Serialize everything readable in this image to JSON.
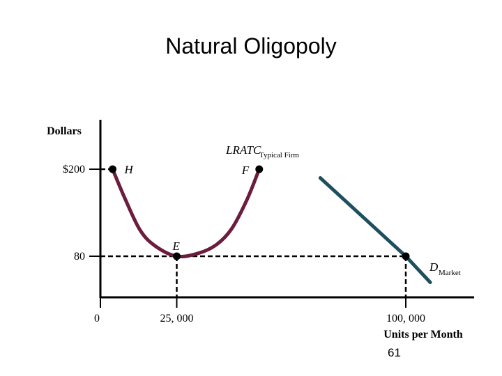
{
  "slide": {
    "title": "Natural Oligopoly",
    "page_number": "61"
  },
  "chart_data": {
    "type": "line",
    "ylabel": "Dollars",
    "xlabel": "Units per Month",
    "x_ticks": [
      {
        "value": 0,
        "label": "0"
      },
      {
        "value": 25000,
        "label": "25, 000"
      },
      {
        "value": 100000,
        "label": "100, 000"
      }
    ],
    "y_ticks": [
      {
        "value": 200,
        "label": "$200"
      },
      {
        "value": 80,
        "label": "80"
      }
    ],
    "series": [
      {
        "name": "LRATC",
        "subscript": "Typical Firm",
        "color": "#6b1d3e",
        "points": [
          {
            "x": 4000,
            "y": 200
          },
          {
            "x": 8000,
            "y": 160
          },
          {
            "x": 13000,
            "y": 116
          },
          {
            "x": 18000,
            "y": 94
          },
          {
            "x": 25000,
            "y": 80
          },
          {
            "x": 32000,
            "y": 84
          },
          {
            "x": 38000,
            "y": 96
          },
          {
            "x": 43000,
            "y": 118
          },
          {
            "x": 48000,
            "y": 158
          },
          {
            "x": 52000,
            "y": 200
          }
        ]
      },
      {
        "name": "D",
        "subscript": "Market",
        "color": "#1d4f5e",
        "points": [
          {
            "x": 72000,
            "y": 188
          },
          {
            "x": 100000,
            "y": 80
          },
          {
            "x": 108000,
            "y": 44
          }
        ]
      }
    ],
    "marked_points": [
      {
        "label": "H",
        "x": 4000,
        "y": 200
      },
      {
        "label": "F",
        "x": 52000,
        "y": 200
      },
      {
        "label": "E",
        "x": 25000,
        "y": 80
      },
      {
        "label": "",
        "x": 100000,
        "y": 80
      }
    ],
    "guide_lines": [
      {
        "from": "y-axis",
        "to": "H"
      },
      {
        "from": "y-axis",
        "to": "E"
      },
      {
        "from": "E",
        "to": "x-axis"
      },
      {
        "from": "D-point",
        "to": "x-axis"
      }
    ]
  }
}
